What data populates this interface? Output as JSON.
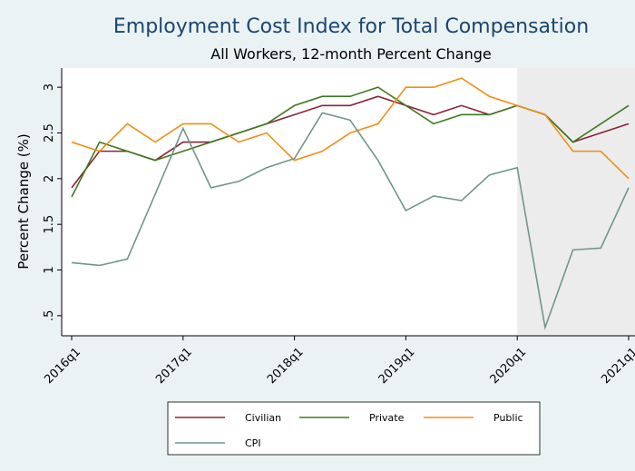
{
  "chart_data": {
    "type": "line",
    "title": "Employment Cost Index for Total Compensation",
    "subtitle": "All Workers, 12-month Percent Change",
    "y_label": "Percent Change (%)",
    "categories": [
      "2016q1",
      null,
      null,
      null,
      "2017q1",
      null,
      null,
      null,
      "2018q1",
      null,
      null,
      null,
      "2019q1",
      null,
      null,
      null,
      "2020q1",
      null,
      null,
      null,
      "2021q1"
    ],
    "series": [
      {
        "name": "Civilian",
        "color": "#8b2332",
        "values": [
          1.9,
          2.3,
          2.3,
          2.2,
          2.4,
          2.4,
          2.5,
          2.6,
          2.7,
          2.8,
          2.8,
          2.9,
          2.8,
          2.7,
          2.8,
          2.7,
          2.8,
          2.7,
          2.4,
          2.5,
          2.6
        ]
      },
      {
        "name": "Private",
        "color": "#3e7a1f",
        "values": [
          1.8,
          2.4,
          2.3,
          2.2,
          2.3,
          2.4,
          2.5,
          2.6,
          2.8,
          2.9,
          2.9,
          3.0,
          2.8,
          2.6,
          2.7,
          2.7,
          2.8,
          2.7,
          2.4,
          2.6,
          2.8
        ]
      },
      {
        "name": "Public",
        "color": "#f28e16",
        "values": [
          2.4,
          2.3,
          2.6,
          2.4,
          2.6,
          2.6,
          2.4,
          2.5,
          2.2,
          2.3,
          2.5,
          2.6,
          3.0,
          3.0,
          3.1,
          2.9,
          2.8,
          2.7,
          2.3,
          2.3,
          2.0
        ]
      },
      {
        "name": "CPI",
        "color": "#6f978a",
        "values": [
          1.08,
          1.05,
          1.12,
          1.83,
          2.55,
          1.9,
          1.97,
          2.12,
          2.22,
          2.72,
          2.64,
          2.2,
          1.65,
          1.81,
          1.76,
          2.04,
          2.12,
          0.37,
          1.22,
          1.24,
          1.9
        ]
      }
    ],
    "ylim": [
      0.28,
      3.21
    ],
    "yticks": [
      {
        "value": 0.5,
        "label": ".5"
      },
      1,
      1.5,
      2,
      2.5,
      3
    ],
    "grid": false
  }
}
